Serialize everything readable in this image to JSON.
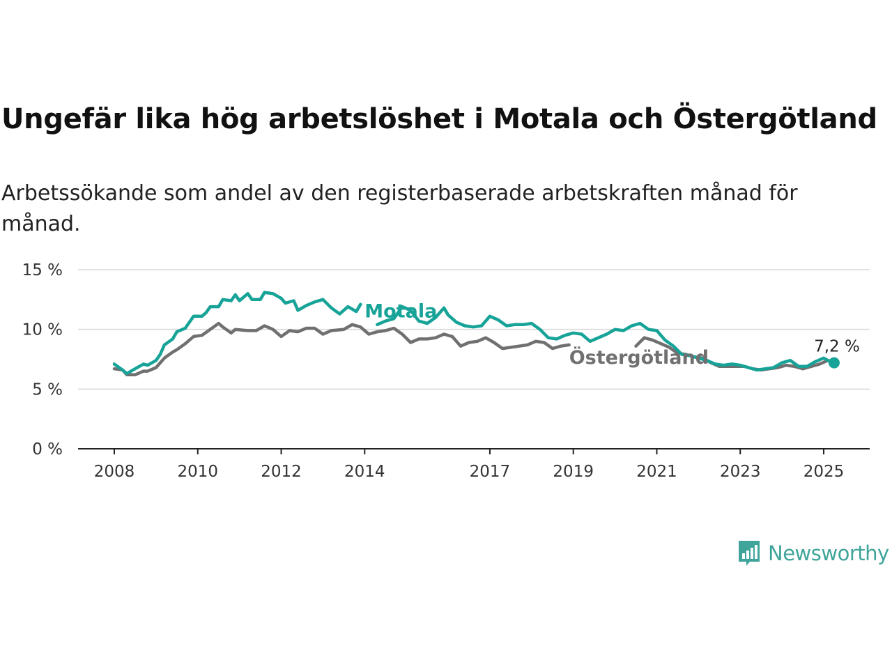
{
  "header": {
    "title": "Ungefär lika hög arbetslöshet i Motala och Östergötland",
    "subtitle": "Arbetssökande som andel av den registerbaserade arbetskraften månad för månad."
  },
  "brand": {
    "name": "Newsworthy",
    "color": "#3fa49a"
  },
  "chart_data": {
    "type": "line",
    "title": "Ungefär lika hög arbetslöshet i Motala och Östergötland",
    "subtitle": "Arbetssökande som andel av den registerbaserade arbetskraften månad för månad.",
    "ylim": [
      0,
      15
    ],
    "y_ticks": [
      0,
      5,
      10,
      15
    ],
    "y_tick_labels": [
      "0 %",
      "5 %",
      "10 %",
      "15 %"
    ],
    "x_ticks": [
      2008,
      2010,
      2012,
      2014,
      2017,
      2019,
      2021,
      2023,
      2025
    ],
    "x_tick_labels": [
      "2008",
      "2010",
      "2012",
      "2014",
      "2017",
      "2019",
      "2021",
      "2023",
      "2025"
    ],
    "xlim": [
      2007.2,
      2026.2
    ],
    "grid": "horizontal",
    "end_label": "7,2 %",
    "series": [
      {
        "name": "Motala",
        "color": "#17a398",
        "points": [
          [
            2008.0,
            7.1
          ],
          [
            2008.2,
            6.6
          ],
          [
            2008.3,
            6.3
          ],
          [
            2008.5,
            6.7
          ],
          [
            2008.7,
            7.1
          ],
          [
            2008.8,
            7.0
          ],
          [
            2009.0,
            7.4
          ],
          [
            2009.1,
            7.9
          ],
          [
            2009.2,
            8.7
          ],
          [
            2009.4,
            9.2
          ],
          [
            2009.5,
            9.8
          ],
          [
            2009.7,
            10.1
          ],
          [
            2009.8,
            10.6
          ],
          [
            2009.9,
            11.1
          ],
          [
            2010.1,
            11.1
          ],
          [
            2010.2,
            11.4
          ],
          [
            2010.3,
            11.9
          ],
          [
            2010.5,
            11.9
          ],
          [
            2010.6,
            12.5
          ],
          [
            2010.8,
            12.4
          ],
          [
            2010.9,
            12.9
          ],
          [
            2011.0,
            12.4
          ],
          [
            2011.2,
            13.0
          ],
          [
            2011.3,
            12.5
          ],
          [
            2011.5,
            12.5
          ],
          [
            2011.6,
            13.1
          ],
          [
            2011.8,
            13.0
          ],
          [
            2012.0,
            12.6
          ],
          [
            2012.1,
            12.2
          ],
          [
            2012.3,
            12.4
          ],
          [
            2012.4,
            11.6
          ],
          [
            2012.6,
            12.0
          ],
          [
            2012.8,
            12.3
          ],
          [
            2013.0,
            12.5
          ],
          [
            2013.2,
            11.8
          ],
          [
            2013.4,
            11.3
          ],
          [
            2013.6,
            11.9
          ],
          [
            2013.8,
            11.5
          ],
          [
            2013.9,
            12.1
          ]
        ]
      },
      {
        "name": "Motala",
        "color": "#17a398",
        "points": [
          [
            2014.3,
            10.4
          ],
          [
            2014.5,
            10.7
          ],
          [
            2014.7,
            10.9
          ],
          [
            2014.9,
            11.9
          ],
          [
            2015.1,
            11.6
          ],
          [
            2015.3,
            10.7
          ],
          [
            2015.5,
            10.5
          ],
          [
            2015.7,
            11.0
          ],
          [
            2015.9,
            11.8
          ],
          [
            2016.0,
            11.2
          ],
          [
            2016.2,
            10.6
          ],
          [
            2016.4,
            10.3
          ],
          [
            2016.6,
            10.2
          ],
          [
            2016.8,
            10.3
          ],
          [
            2017.0,
            11.1
          ],
          [
            2017.2,
            10.8
          ],
          [
            2017.4,
            10.3
          ],
          [
            2017.6,
            10.4
          ],
          [
            2017.8,
            10.4
          ],
          [
            2018.0,
            10.5
          ],
          [
            2018.2,
            10.0
          ],
          [
            2018.4,
            9.3
          ],
          [
            2018.6,
            9.2
          ],
          [
            2018.8,
            9.5
          ],
          [
            2019.0,
            9.7
          ],
          [
            2019.2,
            9.6
          ],
          [
            2019.4,
            9.0
          ],
          [
            2019.6,
            9.3
          ],
          [
            2019.8,
            9.6
          ],
          [
            2020.0,
            10.0
          ],
          [
            2020.2,
            9.9
          ],
          [
            2020.4,
            10.3
          ],
          [
            2020.6,
            10.5
          ],
          [
            2020.8,
            10.0
          ],
          [
            2021.0,
            9.9
          ],
          [
            2021.2,
            9.1
          ],
          [
            2021.4,
            8.6
          ],
          [
            2021.6,
            7.9
          ],
          [
            2021.8,
            7.8
          ],
          [
            2022.0,
            7.6
          ],
          [
            2022.2,
            7.4
          ],
          [
            2022.4,
            7.1
          ],
          [
            2022.6,
            7.0
          ],
          [
            2022.8,
            7.1
          ],
          [
            2023.0,
            7.0
          ],
          [
            2023.2,
            6.8
          ],
          [
            2023.4,
            6.6
          ],
          [
            2023.6,
            6.7
          ],
          [
            2023.8,
            6.8
          ],
          [
            2024.0,
            7.2
          ],
          [
            2024.2,
            7.4
          ],
          [
            2024.4,
            6.9
          ],
          [
            2024.6,
            6.9
          ],
          [
            2024.8,
            7.3
          ],
          [
            2025.0,
            7.6
          ],
          [
            2025.2,
            7.2
          ]
        ]
      },
      {
        "name": "Östergötland",
        "color": "#707070",
        "points": [
          [
            2008.0,
            6.7
          ],
          [
            2008.2,
            6.6
          ],
          [
            2008.3,
            6.2
          ],
          [
            2008.5,
            6.2
          ],
          [
            2008.7,
            6.5
          ],
          [
            2008.8,
            6.5
          ],
          [
            2009.0,
            6.8
          ],
          [
            2009.2,
            7.6
          ],
          [
            2009.4,
            8.1
          ],
          [
            2009.5,
            8.3
          ],
          [
            2009.7,
            8.8
          ],
          [
            2009.9,
            9.4
          ],
          [
            2010.1,
            9.5
          ],
          [
            2010.3,
            10.0
          ],
          [
            2010.5,
            10.5
          ],
          [
            2010.6,
            10.2
          ],
          [
            2010.8,
            9.7
          ],
          [
            2010.9,
            10.0
          ],
          [
            2011.2,
            9.9
          ],
          [
            2011.4,
            9.9
          ],
          [
            2011.6,
            10.3
          ],
          [
            2011.8,
            10.0
          ],
          [
            2012.0,
            9.4
          ],
          [
            2012.2,
            9.9
          ],
          [
            2012.4,
            9.8
          ],
          [
            2012.6,
            10.1
          ],
          [
            2012.8,
            10.1
          ],
          [
            2013.0,
            9.6
          ],
          [
            2013.2,
            9.9
          ],
          [
            2013.5,
            10.0
          ],
          [
            2013.7,
            10.4
          ],
          [
            2013.9,
            10.2
          ],
          [
            2014.1,
            9.6
          ],
          [
            2014.3,
            9.8
          ],
          [
            2014.5,
            9.9
          ],
          [
            2014.7,
            10.1
          ],
          [
            2014.9,
            9.6
          ],
          [
            2015.1,
            8.9
          ],
          [
            2015.3,
            9.2
          ],
          [
            2015.5,
            9.2
          ],
          [
            2015.7,
            9.3
          ],
          [
            2015.9,
            9.6
          ],
          [
            2016.1,
            9.4
          ],
          [
            2016.3,
            8.6
          ],
          [
            2016.5,
            8.9
          ],
          [
            2016.7,
            9.0
          ],
          [
            2016.9,
            9.3
          ],
          [
            2017.1,
            8.9
          ],
          [
            2017.3,
            8.4
          ],
          [
            2017.5,
            8.5
          ],
          [
            2017.7,
            8.6
          ],
          [
            2017.9,
            8.7
          ],
          [
            2018.1,
            9.0
          ],
          [
            2018.3,
            8.9
          ],
          [
            2018.5,
            8.4
          ],
          [
            2018.7,
            8.6
          ],
          [
            2018.9,
            8.7
          ]
        ]
      },
      {
        "name": "Östergötland",
        "color": "#707070",
        "points": [
          [
            2020.5,
            8.6
          ],
          [
            2020.7,
            9.3
          ],
          [
            2020.9,
            9.1
          ],
          [
            2021.1,
            8.8
          ],
          [
            2021.3,
            8.5
          ],
          [
            2021.5,
            8.0
          ],
          [
            2021.7,
            7.9
          ],
          [
            2021.9,
            7.7
          ],
          [
            2022.1,
            7.6
          ],
          [
            2022.3,
            7.2
          ],
          [
            2022.5,
            6.9
          ],
          [
            2022.7,
            6.9
          ],
          [
            2022.9,
            6.9
          ],
          [
            2023.1,
            6.9
          ],
          [
            2023.3,
            6.7
          ],
          [
            2023.5,
            6.6
          ],
          [
            2023.7,
            6.7
          ],
          [
            2023.9,
            6.8
          ],
          [
            2024.1,
            7.0
          ],
          [
            2024.3,
            6.9
          ],
          [
            2024.5,
            6.7
          ],
          [
            2024.7,
            6.9
          ],
          [
            2024.9,
            7.1
          ],
          [
            2025.1,
            7.4
          ],
          [
            2025.2,
            7.3
          ]
        ]
      }
    ],
    "series_labels": [
      {
        "text": "Motala",
        "x": 2014.0,
        "y": 11.6
      },
      {
        "text": "Östergötland",
        "x": 2018.9,
        "y": 7.7
      }
    ],
    "end_point": {
      "x": 2025.25,
      "y": 7.2
    }
  }
}
